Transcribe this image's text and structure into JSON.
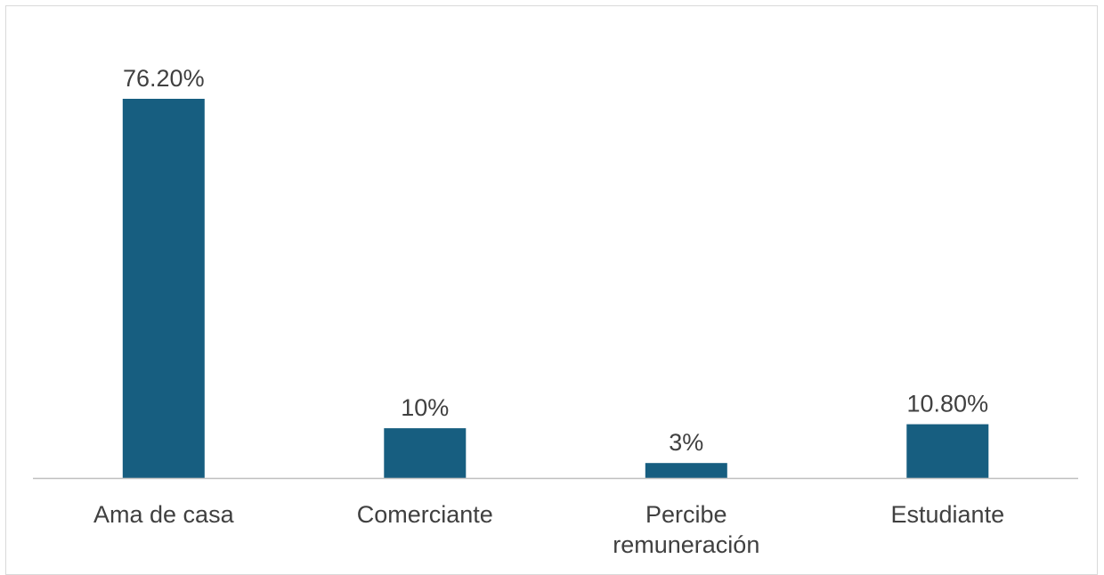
{
  "chart_data": {
    "type": "bar",
    "title": "",
    "xlabel": "",
    "ylabel": "",
    "categories": [
      [
        "Ama de casa"
      ],
      [
        "Comerciante"
      ],
      [
        "Percibe",
        "remuneración"
      ],
      [
        "Estudiante"
      ]
    ],
    "values": [
      76.2,
      10,
      3,
      10.8
    ],
    "data_labels": [
      "76.20%",
      "10%",
      "3%",
      "10.80%"
    ],
    "unit": "%",
    "ylim": [
      0,
      76.2
    ],
    "grid": false,
    "legend": "none",
    "colors": {
      "bar": "#175e80",
      "axis": "#bfbfbf",
      "text": "#404040",
      "border": "#d9d9d9"
    }
  }
}
